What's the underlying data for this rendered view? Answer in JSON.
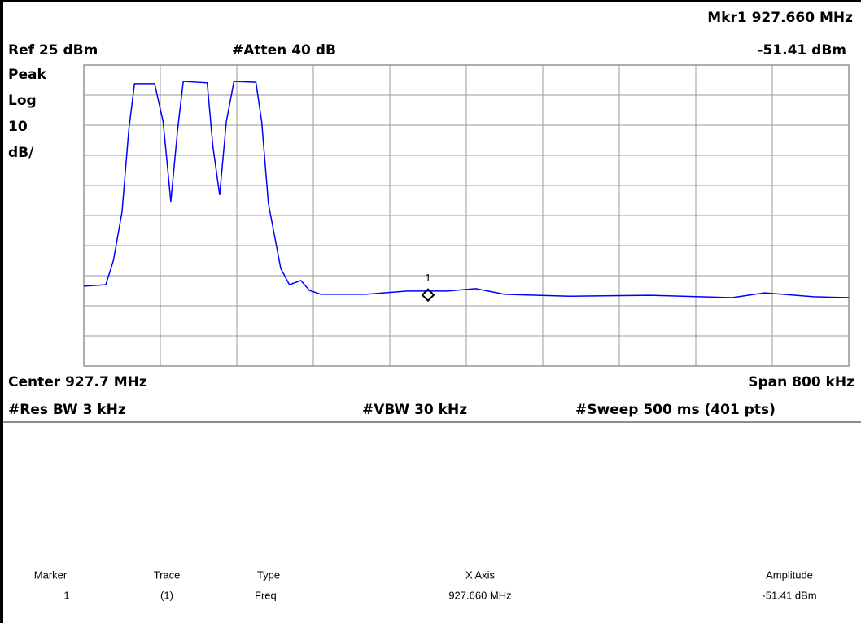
{
  "header": {
    "marker_readout": "Mkr1 927.660 MHz",
    "ref": "Ref 25 dBm",
    "atten": "#Atten 40 dB",
    "marker_amplitude": "-51.41 dBm",
    "detector": "Peak",
    "scale_type": "Log",
    "scale_value": "10",
    "scale_unit": "dB/"
  },
  "footer": {
    "center": "Center 927.7 MHz",
    "span": "Span 800 kHz",
    "rbw": "#Res BW 3 kHz",
    "vbw": "#VBW 30 kHz",
    "sweep": "#Sweep 500 ms (401 pts)"
  },
  "chart_data": {
    "type": "line",
    "color": "#0000ff",
    "grid": true,
    "x": [
      927.3,
      927.323,
      927.331,
      927.34,
      927.347,
      927.353,
      927.374,
      927.383,
      927.391,
      927.398,
      927.404,
      927.429,
      927.435,
      927.442,
      927.449,
      927.457,
      927.48,
      927.486,
      927.493,
      927.506,
      927.515,
      927.527,
      927.536,
      927.548,
      927.595,
      927.638,
      927.68,
      927.71,
      927.74,
      927.808,
      927.893,
      927.978,
      928.012,
      928.063,
      928.1
    ],
    "values": [
      -48.5,
      -48.0,
      -39.9,
      -23.7,
      3.4,
      18.8,
      18.8,
      6.1,
      -20.4,
      3.4,
      19.6,
      19.1,
      -2.0,
      -18.2,
      6.1,
      19.6,
      19.3,
      6.1,
      -21.0,
      -42.6,
      -48.0,
      -46.6,
      -49.9,
      -51.2,
      -51.2,
      -50.1,
      -50.1,
      -49.3,
      -51.2,
      -51.8,
      -51.5,
      -52.3,
      -50.7,
      -52.0,
      -52.3
    ],
    "xlim": [
      927.3,
      928.1
    ],
    "ylim": [
      -75,
      25
    ],
    "xticks": [
      927.3,
      927.38,
      927.46,
      927.54,
      927.62,
      927.7,
      927.78,
      927.86,
      927.94,
      928.02,
      928.1
    ],
    "yticks": [
      -75,
      -65,
      -55,
      -45,
      -35,
      -25,
      -15,
      -5,
      5,
      15,
      25
    ]
  },
  "marker": {
    "label": "1",
    "x": 927.66,
    "value": -51.41
  },
  "table": {
    "columns": [
      "Marker",
      "Trace",
      "Type",
      "X Axis",
      "Amplitude"
    ],
    "rows": [
      [
        "1",
        "(1)",
        "Freq",
        "927.660 MHz",
        "-51.41 dBm"
      ]
    ]
  }
}
